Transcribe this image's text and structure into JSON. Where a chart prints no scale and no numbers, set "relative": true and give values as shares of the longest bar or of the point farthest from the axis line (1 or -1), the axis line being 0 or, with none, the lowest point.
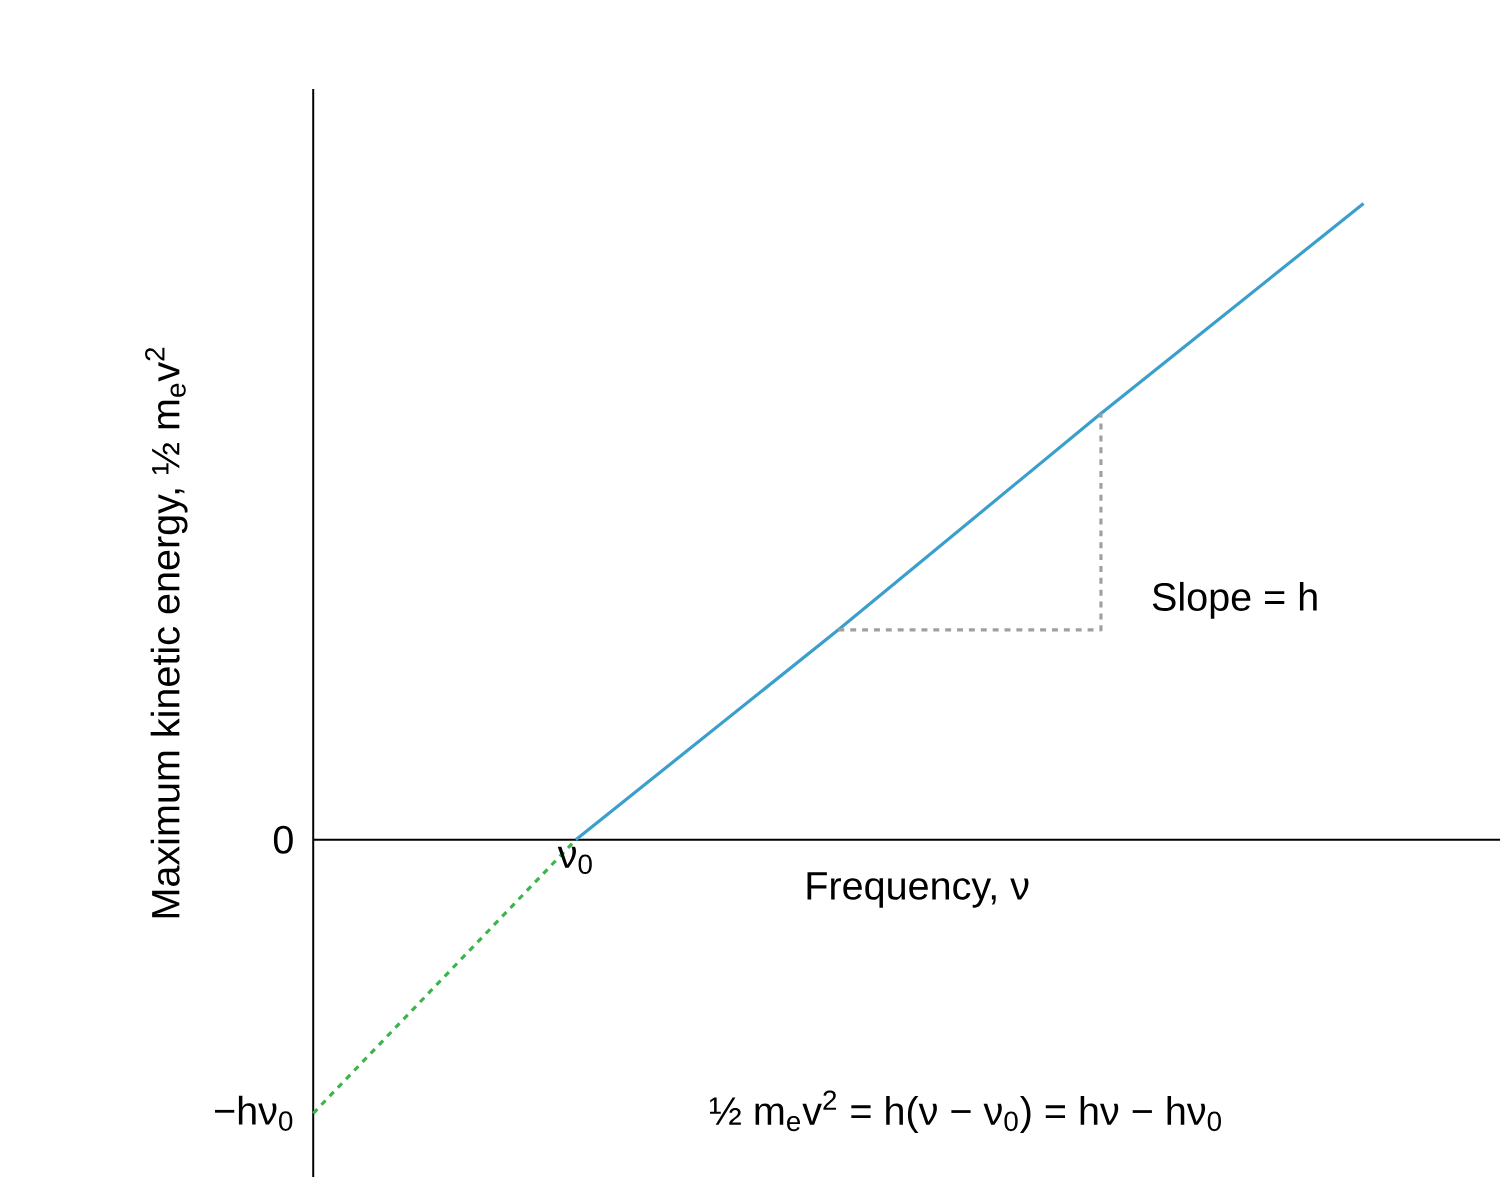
{
  "chart_data": {
    "type": "line",
    "relative": true,
    "xlabel": "Frequency, ν",
    "ylabel": "Maximum kinetic energy, ½ m$_{e}$v$^{2}$",
    "categories": [
      null,
      null,
      null,
      null,
      null
    ],
    "series": [
      {
        "color": "#3cb44b",
        "line_style": "dashed",
        "values": [
          -0.43,
          0,
          null,
          null,
          null
        ]
      },
      {
        "color": "#3a9fcc",
        "line_style": "solid",
        "values": [
          null,
          0,
          0.33,
          0.67,
          1
        ]
      },
      {
        "type": "step",
        "color": "#a0a0a0",
        "line_style": "dashed",
        "values": [
          null,
          null,
          0.33,
          0.67,
          null
        ]
      }
    ],
    "annotations": [
      "Slope = h",
      "½ m$_{e}$v$^{2}$ = h(ν − ν$_{0}$) = hν − hν$_{0}$",
      "ν$_{0}$",
      "0",
      "−hν$_{0}$"
    ]
  }
}
